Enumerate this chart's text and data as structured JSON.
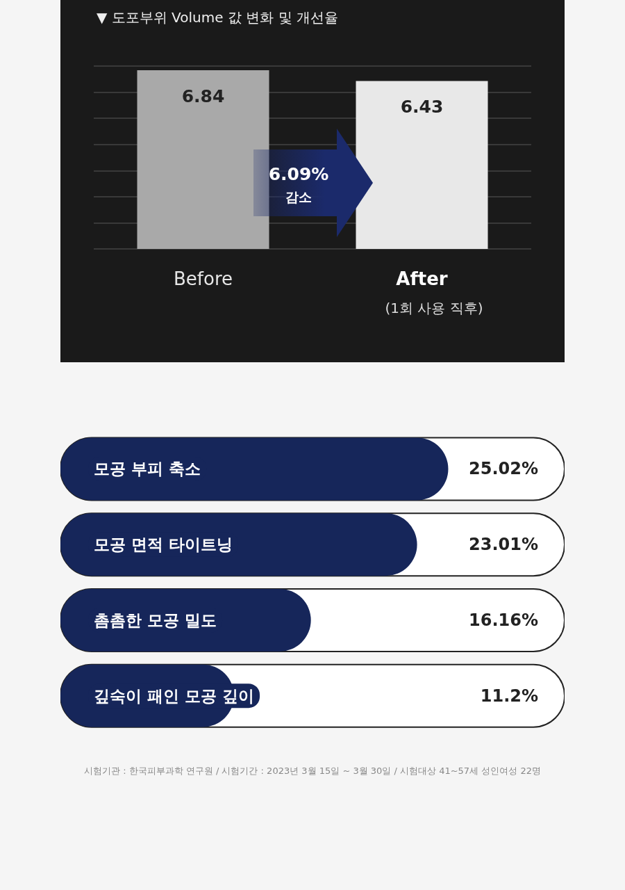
{
  "chart_data": [
    {
      "type": "bar",
      "title": "▼ 도포부위 Volume 값 변화 및 개선율",
      "categories": [
        "Before",
        "After"
      ],
      "values": [
        6.84,
        6.43
      ],
      "colors": [
        "#a9a9a9",
        "#e8e8e8"
      ],
      "data_labels": true,
      "grid": "y",
      "tick_labels": "x",
      "annotations": [
        "6.09%",
        "감소",
        "(1회 사용 직후)"
      ]
    },
    {
      "type": "bar",
      "orientation": "horizontal",
      "categories": [
        "모공 부피 축소",
        "모공 면적 타이트닝",
        "촘촘한 모공 밀도",
        "깊숙이 패인 모공 깊이"
      ],
      "values": [
        25.02,
        23.01,
        16.16,
        11.2
      ],
      "value_labels": [
        "25.02%",
        "23.01%",
        "16.16%",
        "11.2%"
      ],
      "color": "#16265a",
      "tick_labels": "y",
      "annotations": [
        "시험기관 : 한국피부과학 연구원  /  시험기간 : 2023년 3월 15일 ~ 3월 30일  /  시험대상 41~57세 성인여성 22명"
      ]
    }
  ]
}
